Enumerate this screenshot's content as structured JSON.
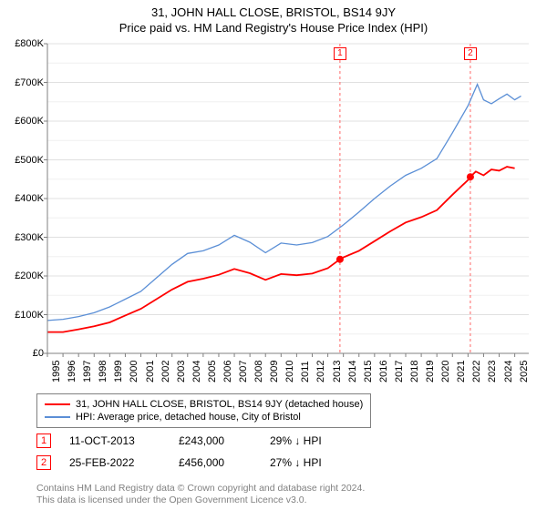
{
  "title": "31, JOHN HALL CLOSE, BRISTOL, BS14 9JY",
  "subtitle": "Price paid vs. HM Land Registry's House Price Index (HPI)",
  "chart": {
    "type": "line",
    "background_color": "#ffffff",
    "grid_color": "#e0e0e0",
    "axis_color": "#808080",
    "x_range": [
      1995,
      2025.9
    ],
    "x_ticks": [
      1995,
      1996,
      1997,
      1998,
      1999,
      2000,
      2001,
      2002,
      2003,
      2004,
      2005,
      2006,
      2007,
      2008,
      2009,
      2010,
      2011,
      2012,
      2013,
      2014,
      2015,
      2016,
      2017,
      2018,
      2019,
      2020,
      2021,
      2022,
      2023,
      2024,
      2025
    ],
    "y_range": [
      0,
      800000
    ],
    "y_ticks": [
      0,
      100000,
      200000,
      300000,
      400000,
      500000,
      600000,
      700000,
      800000
    ],
    "y_tick_labels": [
      "£0",
      "£100K",
      "£200K",
      "£300K",
      "£400K",
      "£500K",
      "£600K",
      "£700K",
      "£800K"
    ],
    "y_minor_ticks": [
      50000,
      150000,
      250000,
      350000,
      450000,
      550000,
      650000,
      750000
    ],
    "series": [
      {
        "name": "price_paid",
        "label": "31, JOHN HALL CLOSE, BRISTOL, BS14 9JY (detached house)",
        "color": "#ff0000",
        "line_width": 1.8,
        "points": [
          [
            1995.0,
            55000
          ],
          [
            1996.0,
            55000
          ],
          [
            1997.0,
            62000
          ],
          [
            1998.0,
            70000
          ],
          [
            1999.0,
            80000
          ],
          [
            2000.0,
            98000
          ],
          [
            2001.0,
            115000
          ],
          [
            2002.0,
            140000
          ],
          [
            2003.0,
            165000
          ],
          [
            2004.0,
            185000
          ],
          [
            2005.0,
            193000
          ],
          [
            2006.0,
            203000
          ],
          [
            2007.0,
            218000
          ],
          [
            2008.0,
            207000
          ],
          [
            2009.0,
            190000
          ],
          [
            2010.0,
            205000
          ],
          [
            2011.0,
            202000
          ],
          [
            2012.0,
            206000
          ],
          [
            2013.0,
            220000
          ],
          [
            2013.78,
            243000
          ],
          [
            2014.0,
            248000
          ],
          [
            2015.0,
            265000
          ],
          [
            2016.0,
            290000
          ],
          [
            2017.0,
            315000
          ],
          [
            2018.0,
            338000
          ],
          [
            2019.0,
            352000
          ],
          [
            2020.0,
            370000
          ],
          [
            2021.0,
            410000
          ],
          [
            2022.0,
            448000
          ],
          [
            2022.15,
            456000
          ],
          [
            2022.5,
            470000
          ],
          [
            2023.0,
            460000
          ],
          [
            2023.5,
            475000
          ],
          [
            2024.0,
            472000
          ],
          [
            2024.5,
            482000
          ],
          [
            2025.0,
            478000
          ]
        ]
      },
      {
        "name": "hpi",
        "label": "HPI: Average price, detached house, City of Bristol",
        "color": "#5b8fd6",
        "line_width": 1.3,
        "points": [
          [
            1995.0,
            85000
          ],
          [
            1996.0,
            88000
          ],
          [
            1997.0,
            95000
          ],
          [
            1998.0,
            105000
          ],
          [
            1999.0,
            120000
          ],
          [
            2000.0,
            140000
          ],
          [
            2001.0,
            160000
          ],
          [
            2002.0,
            195000
          ],
          [
            2003.0,
            230000
          ],
          [
            2004.0,
            258000
          ],
          [
            2005.0,
            265000
          ],
          [
            2006.0,
            280000
          ],
          [
            2007.0,
            305000
          ],
          [
            2008.0,
            287000
          ],
          [
            2009.0,
            260000
          ],
          [
            2010.0,
            285000
          ],
          [
            2011.0,
            280000
          ],
          [
            2012.0,
            286000
          ],
          [
            2013.0,
            302000
          ],
          [
            2014.0,
            332000
          ],
          [
            2015.0,
            365000
          ],
          [
            2016.0,
            400000
          ],
          [
            2017.0,
            432000
          ],
          [
            2018.0,
            460000
          ],
          [
            2019.0,
            478000
          ],
          [
            2020.0,
            503000
          ],
          [
            2021.0,
            570000
          ],
          [
            2022.0,
            640000
          ],
          [
            2022.6,
            695000
          ],
          [
            2023.0,
            655000
          ],
          [
            2023.5,
            645000
          ],
          [
            2024.0,
            658000
          ],
          [
            2024.5,
            670000
          ],
          [
            2025.0,
            655000
          ],
          [
            2025.4,
            665000
          ]
        ]
      }
    ],
    "markers": [
      {
        "badge": "1",
        "x": 2013.78,
        "y": 243000,
        "color": "#ff0000",
        "radius": 4
      },
      {
        "badge": "2",
        "x": 2022.15,
        "y": 456000,
        "color": "#ff0000",
        "radius": 4
      }
    ],
    "vlines": [
      {
        "x": 2013.78,
        "color": "#ff6666",
        "dash": "3,3"
      },
      {
        "x": 2022.15,
        "color": "#ff6666",
        "dash": "3,3"
      }
    ]
  },
  "legend": {
    "border_color": "#808080",
    "items": [
      {
        "color": "#ff0000",
        "label": "31, JOHN HALL CLOSE, BRISTOL, BS14 9JY (detached house)"
      },
      {
        "color": "#5b8fd6",
        "label": "HPI: Average price, detached house, City of Bristol"
      }
    ]
  },
  "sales": [
    {
      "badge": "1",
      "date": "11-OCT-2013",
      "price": "£243,000",
      "delta": "29% ↓ HPI"
    },
    {
      "badge": "2",
      "date": "25-FEB-2022",
      "price": "£456,000",
      "delta": "27% ↓ HPI"
    }
  ],
  "footer": {
    "line1": "Contains HM Land Registry data © Crown copyright and database right 2024.",
    "line2": "This data is licensed under the Open Government Licence v3.0.",
    "color": "#808080"
  }
}
